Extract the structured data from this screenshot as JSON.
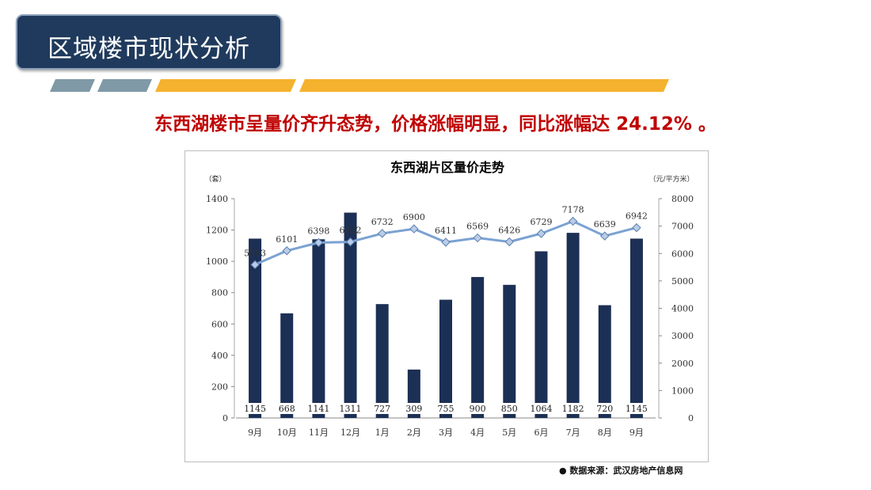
{
  "slide": {
    "title": "区域楼市现状分析",
    "headline": "东西湖楼市呈量价齐升态势，价格涨幅明显，同比涨幅达 24.12% 。",
    "source": "● 数据来源：武汉房地产信息网",
    "colors": {
      "title_bg": "#1f3a5c",
      "stripe_gray": "#7f9aa6",
      "stripe_gold": "#f5b22e",
      "headline": "#c00000",
      "bar": "#1c2f55",
      "line": "#7ba2d2",
      "marker": "#b9cde8"
    }
  },
  "chart_data": {
    "type": "bar+line",
    "title": "东西湖片区量价走势",
    "left_unit": "（套）",
    "right_unit": "（元/平方米）",
    "categories": [
      "9月",
      "10月",
      "11月",
      "12月",
      "1月",
      "2月",
      "3月",
      "4月",
      "5月",
      "6月",
      "7月",
      "8月",
      "9月"
    ],
    "left_axis": {
      "min": 0,
      "max": 1400,
      "ticks": [
        "0",
        "200",
        "400",
        "600",
        "800",
        "1000",
        "1200",
        "1400"
      ]
    },
    "right_axis": {
      "min": 0,
      "max": 8000,
      "ticks": [
        "0",
        "1000",
        "2000",
        "3000",
        "4000",
        "5000",
        "6000",
        "7000",
        "8000"
      ]
    },
    "series": [
      {
        "type": "bar",
        "axis": "left",
        "values": [
          1145,
          668,
          1141,
          1311,
          727,
          309,
          755,
          900,
          850,
          1064,
          1182,
          720,
          1145
        ]
      },
      {
        "type": "line",
        "axis": "right",
        "values": [
          5593,
          6101,
          6398,
          6422,
          6732,
          6900,
          6411,
          6569,
          6426,
          6729,
          7178,
          6639,
          6942
        ]
      }
    ],
    "grid": false,
    "legend": "none"
  }
}
